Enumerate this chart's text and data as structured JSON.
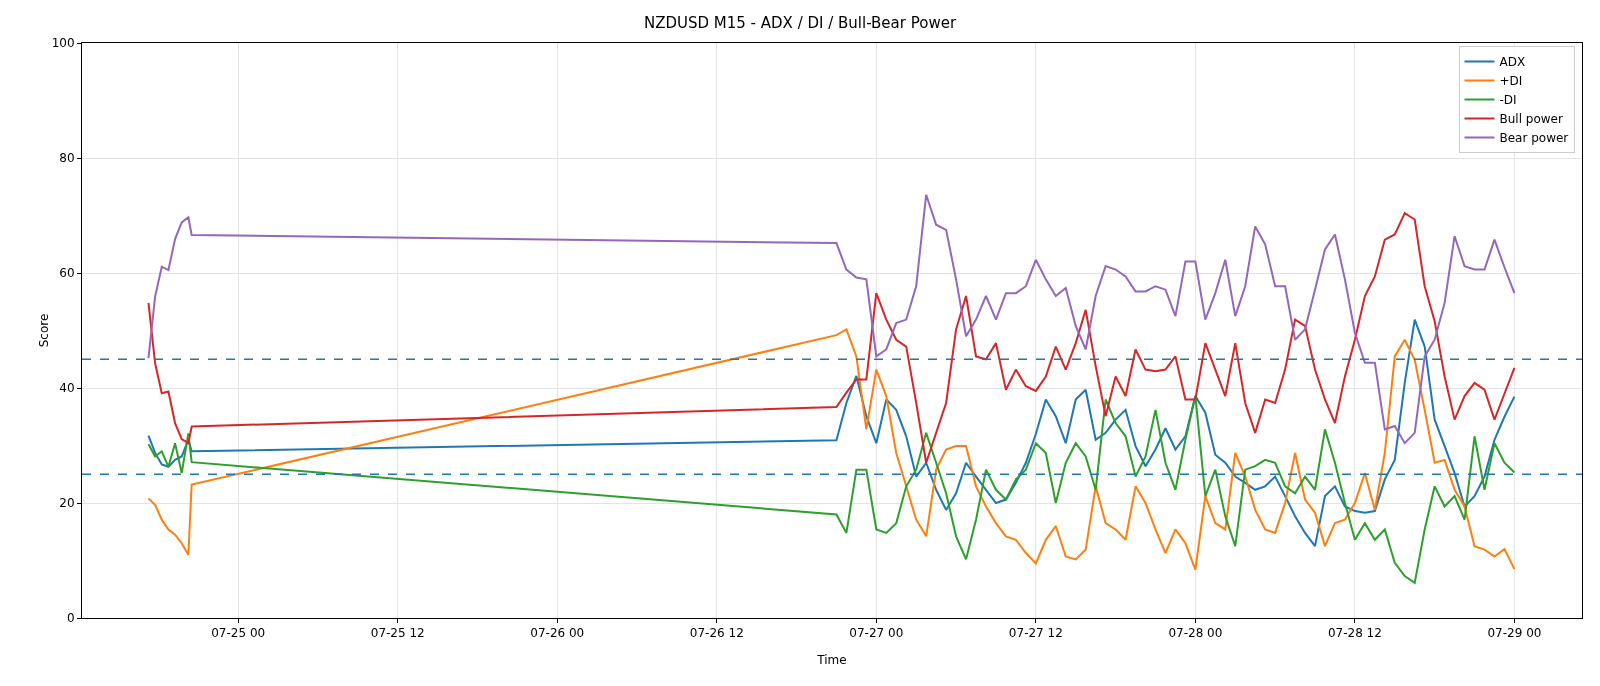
{
  "chart_data": {
    "type": "line",
    "title": "NZDUSD M15 - ADX / DI / Bull-Bear Power",
    "xlabel": "Time",
    "ylabel": "Score",
    "x": [
      "--07-24T17:15",
      "--07-24T17:45",
      "--07-24T18:15",
      "--07-24T18:45",
      "--07-24T19:15",
      "--07-24T19:45",
      "--07-24T20:15",
      "--07-24T20:30",
      "--07-26T21:00",
      "--07-26T21:45",
      "--07-26T22:30",
      "--07-26T23:15",
      "--07-27T00:00",
      "--07-27T00:45",
      "--07-27T01:30",
      "--07-27T02:15",
      "--07-27T03:00",
      "--07-27T03:45",
      "--07-27T04:30",
      "--07-27T05:15",
      "--07-27T06:00",
      "--07-27T06:45",
      "--07-27T07:30",
      "--07-27T08:15",
      "--07-27T09:00",
      "--07-27T09:45",
      "--07-27T10:30",
      "--07-27T11:15",
      "--07-27T12:00",
      "--07-27T12:45",
      "--07-27T13:30",
      "--07-27T14:15",
      "--07-27T15:00",
      "--07-27T15:45",
      "--07-27T16:30",
      "--07-27T17:15",
      "--07-27T18:00",
      "--07-27T18:45",
      "--07-27T19:30",
      "--07-27T20:15",
      "--07-27T21:00",
      "--07-27T21:45",
      "--07-27T22:30",
      "--07-27T23:15",
      "--07-28T00:00",
      "--07-28T00:45",
      "--07-28T01:30",
      "--07-28T02:15",
      "--07-28T03:00",
      "--07-28T03:45",
      "--07-28T04:30",
      "--07-28T05:15",
      "--07-28T06:00",
      "--07-28T06:45",
      "--07-28T07:30",
      "--07-28T08:15",
      "--07-28T09:00",
      "--07-28T09:45",
      "--07-28T10:30",
      "--07-28T11:15",
      "--07-28T12:00",
      "--07-28T12:45",
      "--07-28T13:30",
      "--07-28T14:15",
      "--07-28T15:00",
      "--07-28T15:45",
      "--07-28T16:30",
      "--07-28T17:15",
      "--07-28T18:00",
      "--07-28T18:45",
      "--07-28T19:30",
      "--07-28T20:15",
      "--07-28T21:00",
      "--07-28T21:45",
      "--07-28T22:30",
      "--07-28T23:15",
      "--07-29T00:00"
    ],
    "series": [
      {
        "name": "ADX",
        "color": "#1f77b4",
        "values": [
          31.7,
          28.7,
          26.7,
          26.3,
          27.5,
          28.1,
          31.0,
          29.0,
          30.9,
          37.4,
          42.1,
          35.1,
          30.4,
          38.0,
          36.2,
          31.6,
          24.6,
          27.0,
          22.3,
          18.8,
          21.7,
          27.0,
          24.6,
          22.3,
          20.0,
          20.6,
          23.5,
          27.0,
          32.0,
          38.0,
          35.1,
          30.4,
          38.0,
          39.7,
          31.0,
          32.2,
          34.5,
          36.2,
          29.9,
          26.4,
          29.3,
          33.0,
          29.3,
          31.6,
          38.6,
          35.7,
          28.4,
          27.0,
          24.6,
          23.5,
          22.3,
          22.9,
          24.6,
          21.2,
          17.7,
          14.8,
          12.5,
          21.2,
          22.9,
          19.4,
          18.6,
          18.3,
          18.6,
          24.1,
          27.5,
          40.9,
          51.9,
          47.2,
          34.5,
          29.9,
          25.2,
          19.4,
          21.2,
          24.6,
          31.0,
          35.0,
          38.5
        ]
      },
      {
        "name": "+DI",
        "color": "#ff7f0e",
        "values": [
          20.8,
          19.7,
          17.1,
          15.4,
          14.5,
          13.0,
          11.0,
          23.2,
          49.2,
          50.2,
          45.5,
          32.8,
          43.2,
          38.6,
          28.7,
          22.9,
          17.1,
          14.2,
          25.8,
          29.3,
          29.9,
          29.9,
          22.9,
          19.4,
          16.5,
          14.2,
          13.6,
          11.3,
          9.5,
          13.6,
          16.0,
          10.7,
          10.2,
          11.9,
          22.9,
          16.5,
          15.4,
          13.6,
          22.9,
          20.0,
          15.4,
          11.3,
          15.4,
          13.0,
          8.4,
          21.2,
          16.5,
          15.4,
          28.7,
          24.6,
          18.8,
          15.4,
          14.8,
          20.0,
          28.7,
          20.6,
          18.3,
          12.5,
          16.5,
          17.1,
          20.0,
          25.2,
          18.8,
          28.7,
          45.5,
          48.4,
          44.9,
          36.2,
          27.0,
          27.5,
          22.3,
          19.4,
          12.5,
          11.9,
          10.7,
          12.0,
          8.5
        ]
      },
      {
        "name": "-DI",
        "color": "#2ca02c",
        "values": [
          30.2,
          28.1,
          29.0,
          26.3,
          30.4,
          25.2,
          32.1,
          27.1,
          18.0,
          14.8,
          25.8,
          25.8,
          15.4,
          14.8,
          16.5,
          22.9,
          25.8,
          32.2,
          27.0,
          21.7,
          14.2,
          10.2,
          17.1,
          25.8,
          22.3,
          20.6,
          24.1,
          25.8,
          30.4,
          28.7,
          20.0,
          27.0,
          30.4,
          28.1,
          22.3,
          38.0,
          33.9,
          31.6,
          24.6,
          28.1,
          36.2,
          27.0,
          22.3,
          31.0,
          38.6,
          21.2,
          25.8,
          17.7,
          12.5,
          25.8,
          26.4,
          27.5,
          27.0,
          22.9,
          21.7,
          24.6,
          22.3,
          32.8,
          27.0,
          20.0,
          13.6,
          16.5,
          13.6,
          15.4,
          9.6,
          7.3,
          6.1,
          15.4,
          22.9,
          19.4,
          21.2,
          17.1,
          31.6,
          22.3,
          30.4,
          27.0,
          25.3
        ]
      },
      {
        "name": "Bull power",
        "color": "#d62728",
        "values": [
          54.8,
          44.3,
          39.1,
          39.4,
          33.9,
          31.1,
          30.4,
          33.3,
          36.7,
          39.2,
          41.5,
          41.5,
          56.5,
          51.9,
          48.4,
          47.2,
          37.4,
          27.0,
          32.2,
          37.4,
          50.2,
          56.0,
          45.5,
          45.0,
          47.8,
          39.7,
          43.2,
          40.3,
          39.5,
          42.0,
          47.2,
          43.2,
          47.8,
          53.6,
          43.8,
          35.1,
          42.0,
          38.6,
          46.7,
          43.2,
          42.9,
          43.2,
          45.5,
          38.0,
          38.0,
          47.8,
          43.2,
          38.6,
          47.8,
          37.4,
          32.2,
          38.0,
          37.4,
          43.2,
          51.9,
          50.8,
          43.2,
          38.0,
          33.9,
          42.0,
          48.4,
          56.0,
          59.4,
          65.8,
          66.7,
          70.4,
          69.3,
          57.7,
          51.6,
          42.0,
          34.5,
          38.6,
          40.9,
          39.7,
          34.5,
          39.0,
          43.5
        ]
      },
      {
        "name": "Bear power",
        "color": "#9467bd",
        "values": [
          45.2,
          55.9,
          61.1,
          60.5,
          65.9,
          68.8,
          69.7,
          66.6,
          65.2,
          60.6,
          59.2,
          58.9,
          45.5,
          46.7,
          51.3,
          51.9,
          57.7,
          73.6,
          68.4,
          67.5,
          58.9,
          49.0,
          51.9,
          56.0,
          51.9,
          56.5,
          56.5,
          57.7,
          62.3,
          58.9,
          56.0,
          57.4,
          50.8,
          46.7,
          56.0,
          61.2,
          60.6,
          59.4,
          56.8,
          56.8,
          57.7,
          57.1,
          52.5,
          62.0,
          62.0,
          51.9,
          56.5,
          62.3,
          52.5,
          57.7,
          68.1,
          65.0,
          57.7,
          57.7,
          48.4,
          50.2,
          57.1,
          64.1,
          66.7,
          58.9,
          49.6,
          44.4,
          44.4,
          32.8,
          33.4,
          30.4,
          32.2,
          45.5,
          48.4,
          54.8,
          66.4,
          61.2,
          60.6,
          60.6,
          65.8,
          61.0,
          56.5
        ]
      }
    ],
    "xlim": [
      "--07-24T12:15",
      "--07-29T05:05"
    ],
    "xticks": [
      {
        "value": "--07-25T00:00",
        "label": "07-25 00"
      },
      {
        "value": "--07-25T12:00",
        "label": "07-25 12"
      },
      {
        "value": "--07-26T00:00",
        "label": "07-26 00"
      },
      {
        "value": "--07-26T12:00",
        "label": "07-26 12"
      },
      {
        "value": "--07-27T00:00",
        "label": "07-27 00"
      },
      {
        "value": "--07-27T12:00",
        "label": "07-27 12"
      },
      {
        "value": "--07-28T00:00",
        "label": "07-28 00"
      },
      {
        "value": "--07-28T12:00",
        "label": "07-28 12"
      },
      {
        "value": "--07-29T00:00",
        "label": "07-29 00"
      }
    ],
    "ylim": [
      0,
      100
    ],
    "yticks": [
      0,
      20,
      40,
      60,
      80,
      100
    ],
    "ref_lines": [
      {
        "axis": "y",
        "value": 45,
        "color": "#1f77b4",
        "line_style": "dashed"
      },
      {
        "axis": "y",
        "value": 25,
        "color": "#1f77b4",
        "line_style": "dashed"
      }
    ],
    "grid": true,
    "legend": "top right",
    "line_style": "solid"
  }
}
